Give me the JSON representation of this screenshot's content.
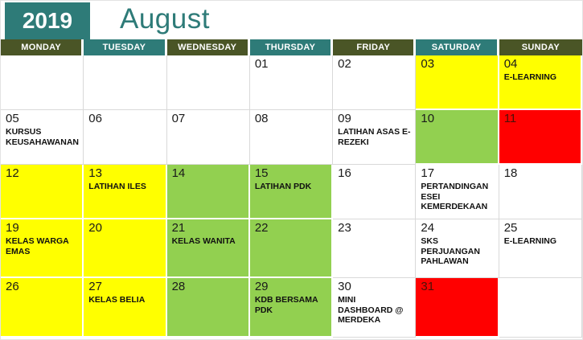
{
  "calendar": {
    "year": "2019",
    "month": "August",
    "colors": {
      "teal": "#2E7B78",
      "olive": "#4A5526",
      "yellow": "#FFFF00",
      "green": "#92D050",
      "red": "#FF0000",
      "white": "#FFFFFF",
      "gridline": "#D9D9D9"
    },
    "day_headers": [
      {
        "label": "MONDAY",
        "style": "olive"
      },
      {
        "label": "TUESDAY",
        "style": "teal"
      },
      {
        "label": "WEDNESDAY",
        "style": "olive"
      },
      {
        "label": "THURSDAY",
        "style": "teal"
      },
      {
        "label": "FRIDAY",
        "style": "olive"
      },
      {
        "label": "SATURDAY",
        "style": "teal"
      },
      {
        "label": "SUNDAY",
        "style": "olive"
      }
    ],
    "weeks": [
      [
        {
          "date": "",
          "event": "",
          "bg": "white"
        },
        {
          "date": "",
          "event": "",
          "bg": "white"
        },
        {
          "date": "",
          "event": "",
          "bg": "white"
        },
        {
          "date": "01",
          "event": "",
          "bg": "white"
        },
        {
          "date": "02",
          "event": "",
          "bg": "white"
        },
        {
          "date": "03",
          "event": "",
          "bg": "yellow"
        },
        {
          "date": "04",
          "event": "E-LEARNING",
          "bg": "yellow"
        }
      ],
      [
        {
          "date": "05",
          "event": "KURSUS KEUSAHAWANAN",
          "bg": "white"
        },
        {
          "date": "06",
          "event": "",
          "bg": "white"
        },
        {
          "date": "07",
          "event": "",
          "bg": "white"
        },
        {
          "date": "08",
          "event": "",
          "bg": "white"
        },
        {
          "date": "09",
          "event": "LATIHAN ASAS E-REZEKI",
          "bg": "white"
        },
        {
          "date": "10",
          "event": "",
          "bg": "green"
        },
        {
          "date": "11",
          "event": "",
          "bg": "red"
        }
      ],
      [
        {
          "date": "12",
          "event": "",
          "bg": "yellow"
        },
        {
          "date": "13",
          "event": "LATIHAN ILES",
          "bg": "yellow"
        },
        {
          "date": "14",
          "event": "",
          "bg": "green"
        },
        {
          "date": "15",
          "event": "LATIHAN PDK",
          "bg": "green"
        },
        {
          "date": "16",
          "event": "",
          "bg": "white"
        },
        {
          "date": "17",
          "event": "PERTANDINGAN ESEI KEMERDEKAAN",
          "bg": "white"
        },
        {
          "date": "18",
          "event": "",
          "bg": "white"
        }
      ],
      [
        {
          "date": "19",
          "event": "KELAS WARGA EMAS",
          "bg": "yellow"
        },
        {
          "date": "20",
          "event": "",
          "bg": "yellow"
        },
        {
          "date": "21",
          "event": "KELAS WANITA",
          "bg": "green"
        },
        {
          "date": "22",
          "event": "",
          "bg": "green"
        },
        {
          "date": "23",
          "event": "",
          "bg": "white"
        },
        {
          "date": "24",
          "event": "SKS PERJUANGAN PAHLAWAN",
          "bg": "white"
        },
        {
          "date": "25",
          "event": "E-LEARNING",
          "bg": "white"
        }
      ],
      [
        {
          "date": "26",
          "event": "",
          "bg": "yellow"
        },
        {
          "date": "27",
          "event": "KELAS BELIA",
          "bg": "yellow"
        },
        {
          "date": "28",
          "event": "",
          "bg": "green"
        },
        {
          "date": "29",
          "event": "KDB BERSAMA PDK",
          "bg": "green"
        },
        {
          "date": "30",
          "event": "MINI DASHBOARD @ MERDEKA",
          "bg": "white"
        },
        {
          "date": "31",
          "event": "",
          "bg": "red"
        },
        {
          "date": "",
          "event": "",
          "bg": "white"
        }
      ]
    ]
  }
}
